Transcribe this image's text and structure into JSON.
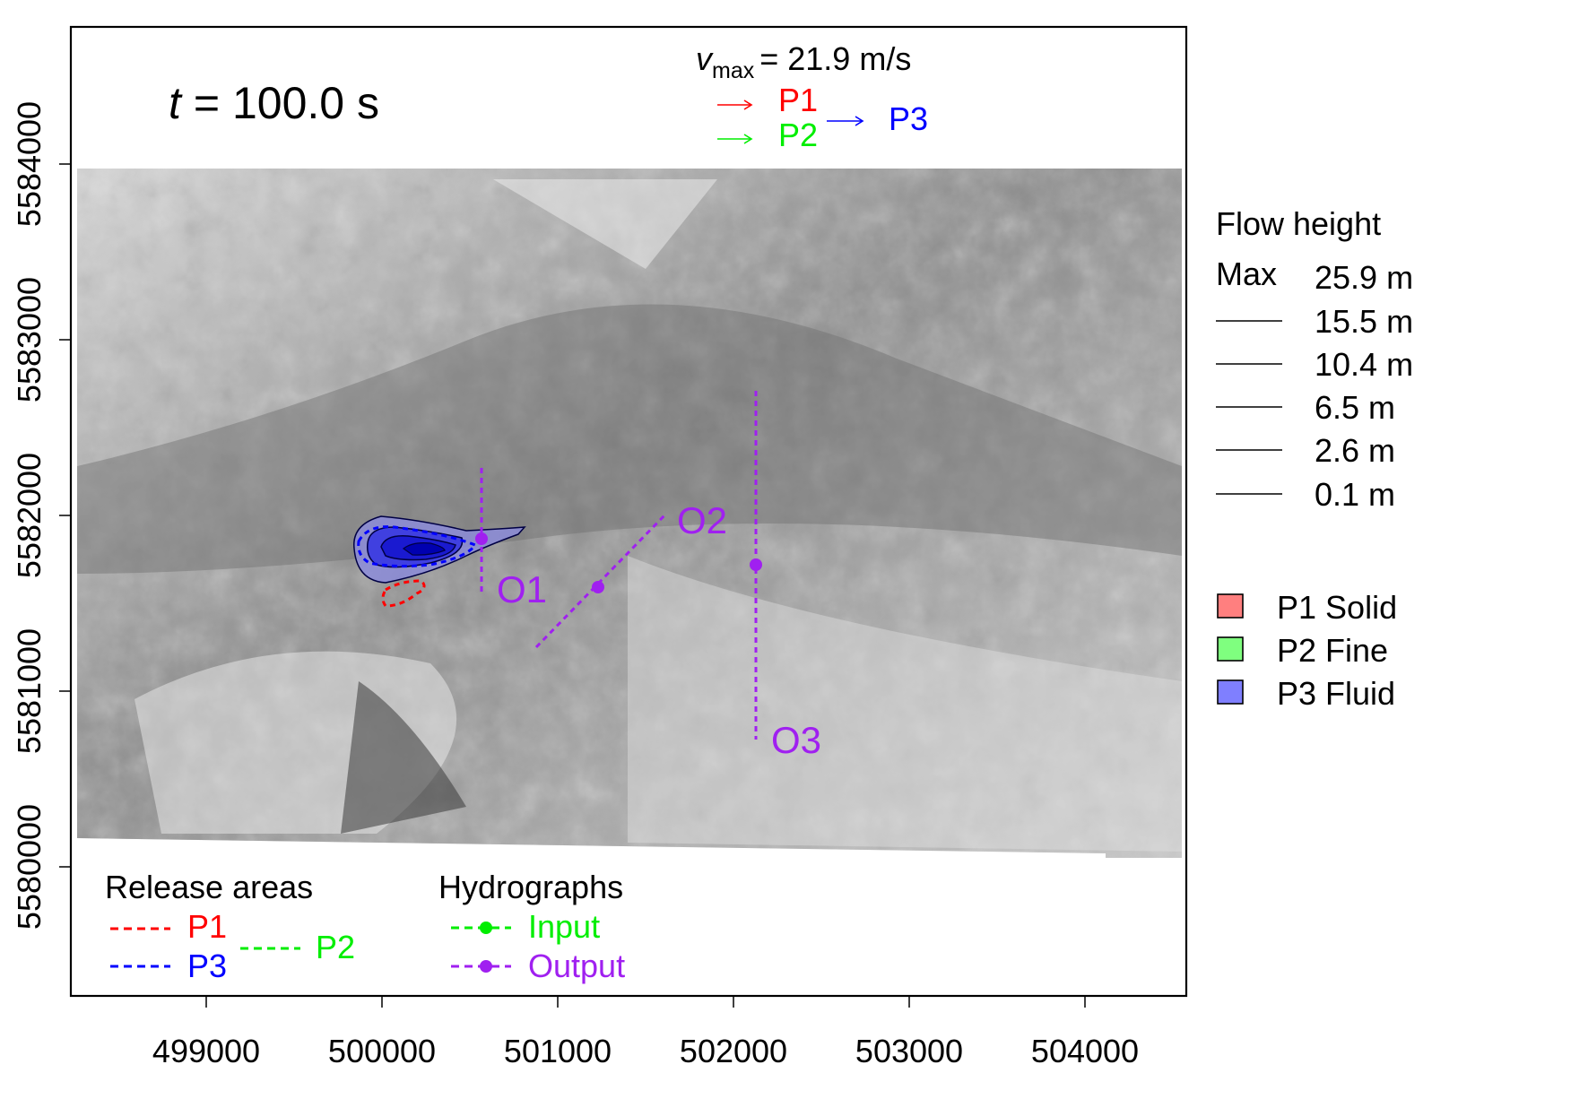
{
  "time_label": {
    "prefix": "t",
    "value": "= 100.0 s"
  },
  "velocity_header": {
    "symbol": "v",
    "subscript": "max",
    "value": "= 21.9 m/s"
  },
  "velocity_arrows": [
    {
      "label": "P1",
      "color": "#ff0000"
    },
    {
      "label": "P2",
      "color": "#00ee00"
    },
    {
      "label": "P3",
      "color": "#0000ff"
    }
  ],
  "flow_height_legend": {
    "title": "Flow height",
    "max_label": "Max",
    "max_value": "25.9 m",
    "levels": [
      "15.5 m",
      "10.4 m",
      "6.5 m",
      "2.6 m",
      "0.1 m"
    ]
  },
  "phase_legend": [
    {
      "label": "P1 Solid",
      "color": "#ff7f7f"
    },
    {
      "label": "P2 Fine",
      "color": "#7fff7f"
    },
    {
      "label": "P3 Fluid",
      "color": "#7f7fff"
    }
  ],
  "release_legend": {
    "title": "Release areas",
    "items": [
      {
        "label": "P1",
        "color": "#ff0000"
      },
      {
        "label": "P2",
        "color": "#00ee00"
      },
      {
        "label": "P3",
        "color": "#0000ff"
      }
    ]
  },
  "hydrograph_legend": {
    "title": "Hydrographs",
    "items": [
      {
        "label": "Input",
        "color": "#00ee00"
      },
      {
        "label": "Output",
        "color": "#a020f0"
      }
    ]
  },
  "hydrograph_profiles": [
    {
      "label": "O1"
    },
    {
      "label": "O2"
    },
    {
      "label": "O3"
    }
  ],
  "x_axis": {
    "ticks": [
      "499000",
      "500000",
      "501000",
      "502000",
      "503000",
      "504000"
    ]
  },
  "y_axis": {
    "ticks": [
      "5580000",
      "5581000",
      "5582000",
      "5583000",
      "5584000"
    ]
  }
}
